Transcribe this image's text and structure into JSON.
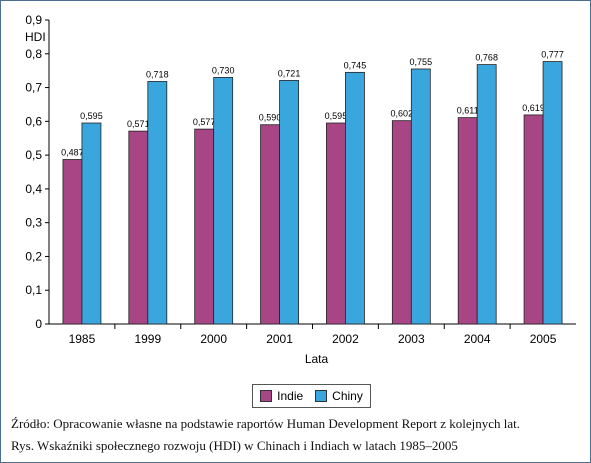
{
  "chart_data": {
    "type": "bar",
    "categories": [
      "1985",
      "1999",
      "2000",
      "2001",
      "2002",
      "2003",
      "2004",
      "2005"
    ],
    "series": [
      {
        "name": "Indie",
        "color": "#a84585",
        "values": [
          0.487,
          0.571,
          0.577,
          0.59,
          0.595,
          0.602,
          0.611,
          0.619
        ],
        "labels": [
          "0,487",
          "0,571",
          "0,577",
          "0,590",
          "0,595",
          "0,602",
          "0,611",
          "0,619"
        ]
      },
      {
        "name": "Chiny",
        "color": "#3aa6de",
        "values": [
          0.595,
          0.718,
          0.73,
          0.721,
          0.745,
          0.755,
          0.768,
          0.777
        ],
        "labels": [
          "0,595",
          "0,718",
          "0,730",
          "0,721",
          "0,745",
          "0,755",
          "0,768",
          "0,777"
        ]
      }
    ],
    "yticks": [
      "0",
      "0,1",
      "0,2",
      "0,3",
      "0,4",
      "0,5",
      "0,6",
      "0,7",
      "0,8",
      "0,9"
    ],
    "ylim": [
      0,
      0.9
    ],
    "ylabel": "HDI",
    "xlabel": "Lata",
    "grid": false,
    "legend_position": "bottom"
  },
  "caption": {
    "source": "Źródło: Opracowanie własne na podstawie raportów Human Development Report z kolejnych lat.",
    "title": "Rys. Wskaźniki społecznego rozwoju (HDI) w Chinach i Indiach w latach 1985–2005"
  }
}
